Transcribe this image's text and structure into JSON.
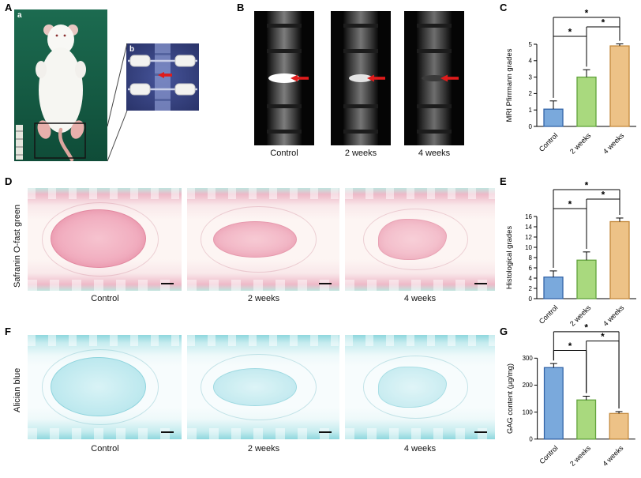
{
  "panels": {
    "A": {
      "label": "A",
      "photo_label": "a",
      "inset_label": "b"
    },
    "B": {
      "label": "B",
      "captions": [
        "Control",
        "2 weeks",
        "4 weeks"
      ]
    },
    "C": {
      "label": "C"
    },
    "D": {
      "label": "D",
      "row_label": "Safranin O-fast green",
      "captions": [
        "Control",
        "2 weeks",
        "4 weeks"
      ]
    },
    "E": {
      "label": "E"
    },
    "F": {
      "label": "F",
      "row_label": "Alician blue",
      "captions": [
        "Control",
        "2 weeks",
        "4 weeks"
      ]
    },
    "G": {
      "label": "G"
    }
  },
  "colors": {
    "arrow_red": "#e01b1b",
    "bar_blue": "#7aa9dc",
    "bar_green": "#a9d97e",
    "bar_orange": "#edc287"
  },
  "chart_data": [
    {
      "id": "C",
      "type": "bar",
      "title": "",
      "ylabel": "MRI Pfirrmann grades",
      "xlabel": "",
      "categories": [
        "Control",
        "2 weeks",
        "4 weeks"
      ],
      "values": [
        1.05,
        3.0,
        4.9
      ],
      "errors": [
        0.5,
        0.45,
        0.12
      ],
      "ylim": [
        0,
        5
      ],
      "yticks": [
        0,
        1,
        2,
        3,
        4,
        5
      ],
      "grid": false,
      "legend": "none",
      "bar_fills": [
        "#7aa9dc",
        "#a9d97e",
        "#edc287"
      ],
      "bar_strokes": [
        "#3465a8",
        "#62a33c",
        "#c3893c"
      ],
      "sig": [
        {
          "a": 0,
          "b": 1,
          "label": "*",
          "level": 0
        },
        {
          "a": 1,
          "b": 2,
          "label": "*",
          "level": 1
        },
        {
          "a": 0,
          "b": 2,
          "label": "*",
          "level": 2
        }
      ]
    },
    {
      "id": "E",
      "type": "bar",
      "title": "",
      "ylabel": "Histological grades",
      "xlabel": "",
      "categories": [
        "Control",
        "2 weeks",
        "4 weeks"
      ],
      "values": [
        4.2,
        7.5,
        15.0
      ],
      "errors": [
        1.2,
        1.6,
        0.7
      ],
      "ylim": [
        0,
        16
      ],
      "yticks": [
        0,
        2,
        4,
        6,
        8,
        10,
        12,
        14,
        16
      ],
      "grid": false,
      "legend": "none",
      "bar_fills": [
        "#7aa9dc",
        "#a9d97e",
        "#edc287"
      ],
      "bar_strokes": [
        "#3465a8",
        "#62a33c",
        "#c3893c"
      ],
      "sig": [
        {
          "a": 0,
          "b": 1,
          "label": "*",
          "level": 0
        },
        {
          "a": 1,
          "b": 2,
          "label": "*",
          "level": 1
        },
        {
          "a": 0,
          "b": 2,
          "label": "*",
          "level": 2
        }
      ]
    },
    {
      "id": "G",
      "type": "bar",
      "title": "",
      "ylabel": "GAG content (μg/mg)",
      "xlabel": "",
      "categories": [
        "Control",
        "2 weeks",
        "4 weeks"
      ],
      "values": [
        265,
        145,
        95
      ],
      "errors": [
        15,
        14,
        7
      ],
      "ylim": [
        0,
        300
      ],
      "yticks": [
        0,
        100,
        200,
        300
      ],
      "grid": false,
      "legend": "none",
      "bar_fills": [
        "#7aa9dc",
        "#a9d97e",
        "#edc287"
      ],
      "bar_strokes": [
        "#3465a8",
        "#62a33c",
        "#c3893c"
      ],
      "sig": [
        {
          "a": 0,
          "b": 1,
          "label": "*",
          "level": 0
        },
        {
          "a": 1,
          "b": 2,
          "label": "*",
          "level": 1
        },
        {
          "a": 0,
          "b": 2,
          "label": "*",
          "level": 2
        }
      ]
    }
  ]
}
